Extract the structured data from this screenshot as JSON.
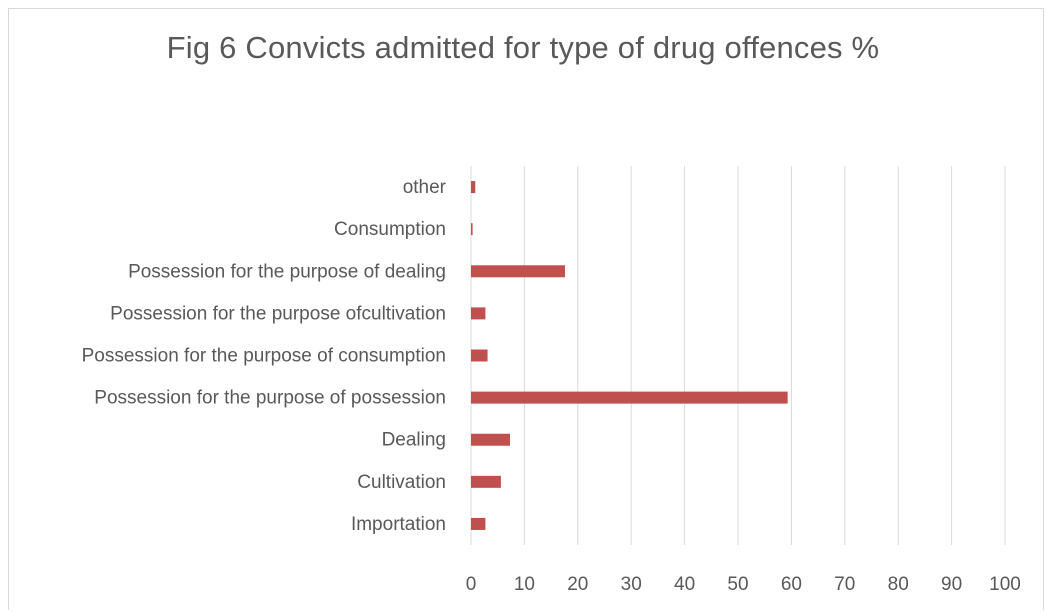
{
  "chart_data": {
    "type": "bar",
    "orientation": "horizontal",
    "title": "Fig 6 Convicts admitted for type of drug offences %",
    "xlabel": "",
    "ylabel": "",
    "categories": [
      "Importation",
      "Cultivation",
      "Dealing",
      "Possession for the purpose of possession",
      "Possession for the purpose of consumption",
      "Possession for the purpose ofcultivation",
      "Possession for the purpose of dealing",
      "Consumption",
      "other"
    ],
    "values": [
      2.7,
      5.6,
      7.3,
      59.3,
      3.1,
      2.7,
      17.6,
      0.3,
      0.8
    ],
    "xlim": [
      0,
      100
    ],
    "xticks": [
      0,
      10,
      20,
      30,
      40,
      50,
      60,
      70,
      80,
      90,
      100
    ],
    "grid": "vertical",
    "legend": "none",
    "bar_color": "#c0504d",
    "gridline_color": "#d9d9d9"
  }
}
